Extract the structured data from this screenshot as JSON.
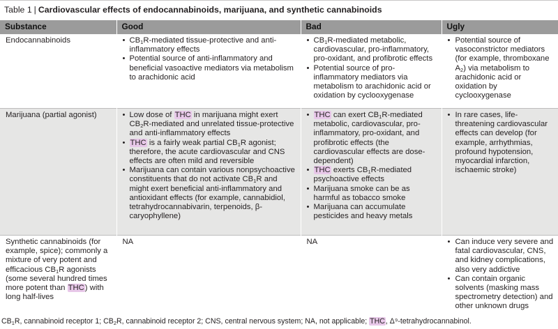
{
  "caption": {
    "label": "Table 1",
    "separator": "|",
    "title": "Cardiovascular effects of endocannabinoids, marijuana, and synthetic cannabinoids"
  },
  "headers": [
    "Substance",
    "Good",
    "Bad",
    "Ugly"
  ],
  "rows": [
    {
      "substance": "Endocannabinoids",
      "good": [
        "CB{1}R-mediated tissue-protective and anti-inflammatory effects",
        "Potential source of anti-inflammatory and beneficial vasoactive mediators via metabolism to arachidonic acid"
      ],
      "bad": [
        "CB{1}R-mediated metabolic, cardiovascular, pro-inflammatory, pro-oxidant, and profibrotic effects",
        "Potential source of pro-inflammatory mediators via metabolism to arachidonic acid or oxidation by cyclooxygenase"
      ],
      "ugly": [
        "Potential source of vasoconstrictor mediators (for example, thromboxane A{2}) via metabolism to arachidonic acid or oxidation by cyclooxygenase"
      ]
    },
    {
      "substance": "Marijuana (partial agonist)",
      "good": [
        "Low dose of [THC] in marijuana might exert CB{2}R-mediated and unrelated tissue-protective and anti-inflammatory effects",
        "[THC] is a fairly weak partial CB{1}R agonist; therefore, the acute cardiovascular and CNS effects are often mild and reversible",
        "Marijuana can contain various nonpsychoactive constituents that do not activate CB{1}R and might exert beneficial anti-inflammatory and antioxidant effects (for example, cannabidiol, tetrahydrocannabivarin, terpenoids, β-caryophyllene)"
      ],
      "bad": [
        "[THC] can exert CB{1}R-mediated metabolic, cardiovascular, pro-inflammatory, pro-oxidant, and profibrotic effects (the cardiovascular effects are dose-dependent)",
        "[THC] exerts CB{1}R-mediated psychoactive effects",
        "Marijuana smoke can be as harmful as tobacco smoke",
        "Marijuana can accumulate pesticides and heavy metals"
      ],
      "ugly": [
        "In rare cases, life-threatening cardiovascular effects can develop (for example, arrhythmias, profound hypotension, myocardial infarction, ischaemic stroke)"
      ]
    },
    {
      "substance": "Synthetic cannabinoids (for example, spice); commonly a mixture of very potent and efficacious CB{1}R agonists (some several hundred times more potent than [THC]) with long half-lives",
      "good": "NA",
      "bad": "NA",
      "ugly": [
        "Can induce very severe and fatal cardiovascular, CNS, and kidney complications, also very addictive",
        "Can contain organic solvents (masking mass spectrometry detection) and other unknown drugs"
      ]
    }
  ],
  "footnote": "CB{1}R, cannabinoid receptor 1; CB{2}R, cannabinoid receptor 2; CNS, central nervous system; NA, not applicable; [THC], Δ⁹-tetrahydrocannabinol."
}
